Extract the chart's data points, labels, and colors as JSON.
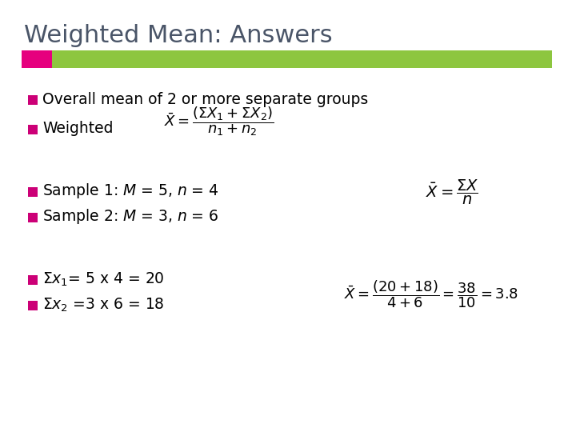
{
  "title": "Weighted Mean: Answers",
  "title_color": "#4a5568",
  "title_fontsize": 22,
  "bg_color": "#ffffff",
  "bullet_color": "#cc0077",
  "header_bar_green": "#8dc63f",
  "header_bar_pink": "#e6007e",
  "bullet1": "Overall mean of 2 or more separate groups",
  "bullet2_text": "Weighted",
  "bullet3": "Sample 1: $M$ = 5, $n$ = 4",
  "bullet4": "Sample 2: $M$ = 3, $n$ = 6",
  "bullet5": "$\\Sigma x_1$= 5 x 4 = 20",
  "bullet6": "$\\Sigma x_2$ =3 x 6 = 18"
}
